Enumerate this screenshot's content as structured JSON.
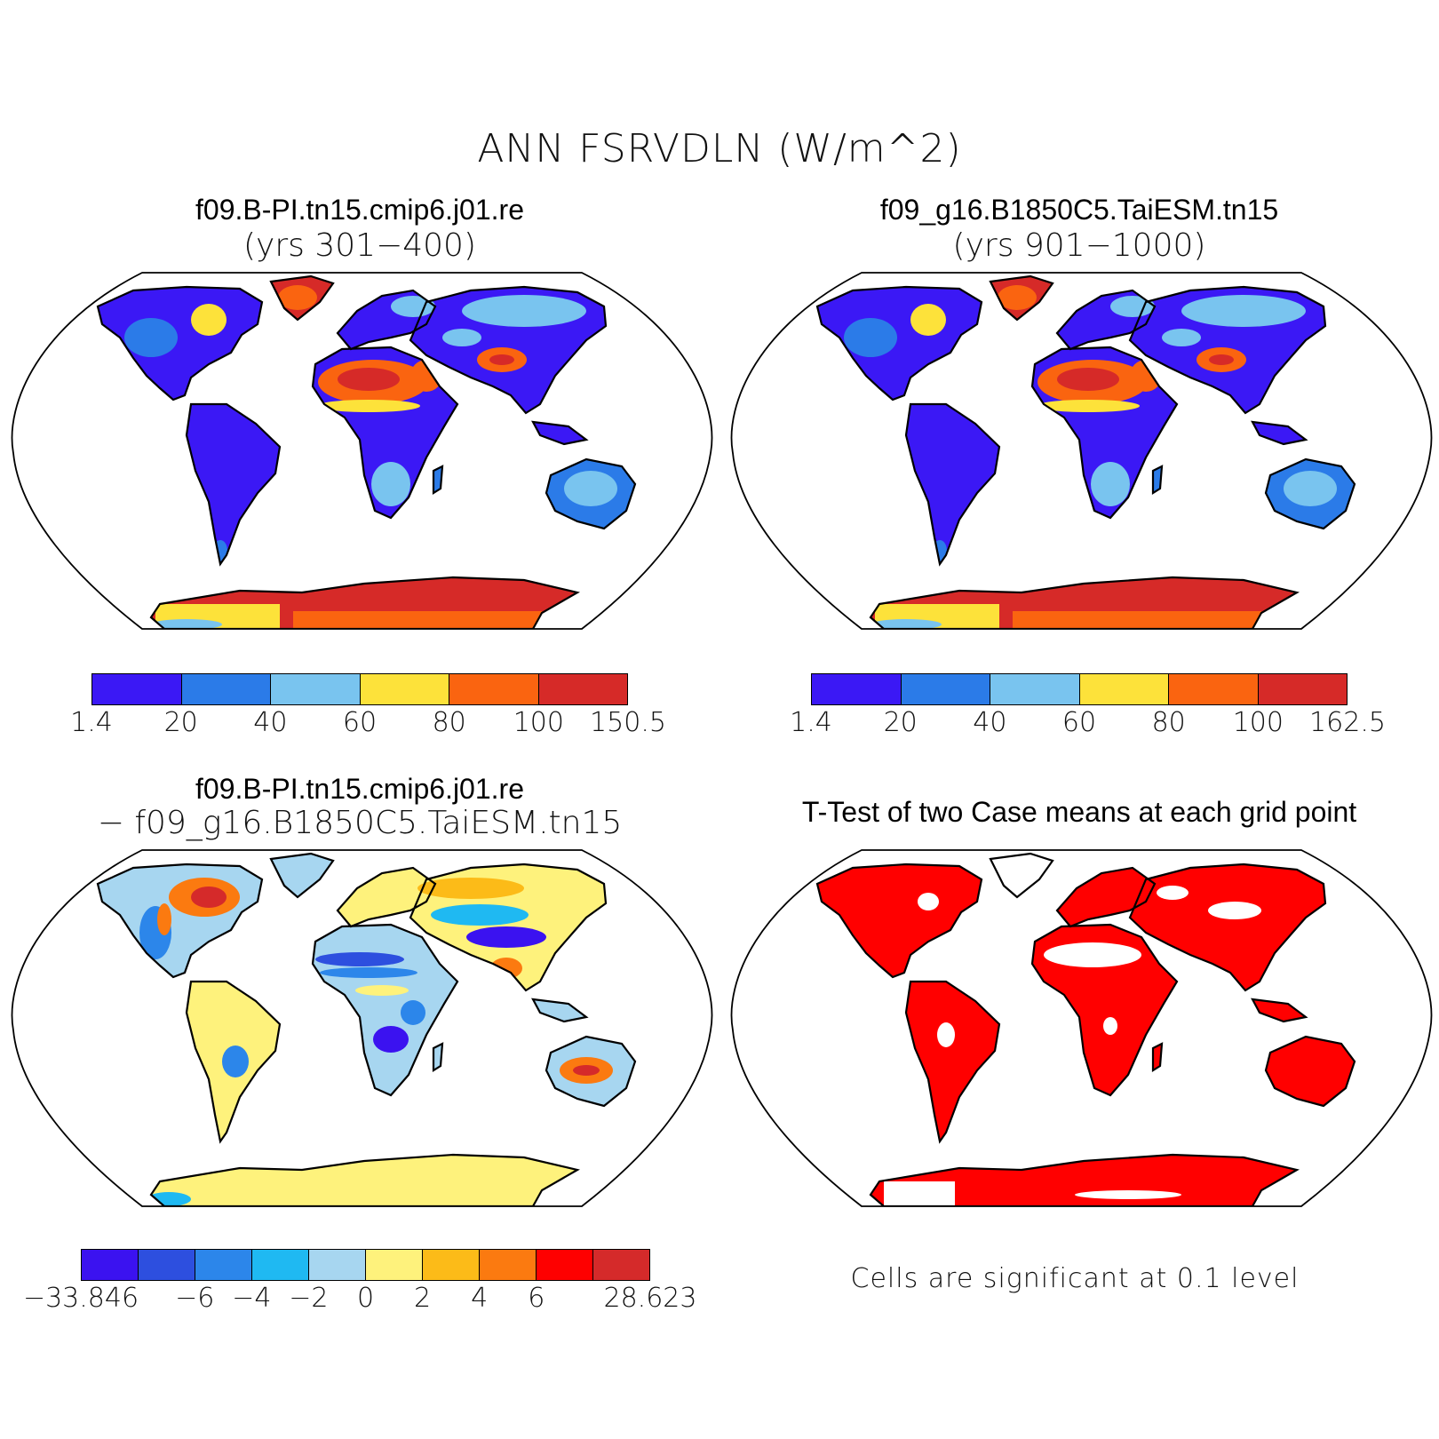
{
  "title": "ANN FSRVDLN (W/m^2)",
  "panels": {
    "case1": {
      "name": "f09.B-PI.tn15.cmip6.j01.re",
      "years": "(yrs 301−400)"
    },
    "case2": {
      "name": "f09_g16.B1850C5.TaiESM.tn15",
      "years": "(yrs 901−1000)"
    },
    "diff": {
      "line1": "f09.B-PI.tn15.cmip6.j01.re",
      "line2": "− f09_g16.B1850C5.TaiESM.tn15"
    },
    "ttest": {
      "title": "T-Test of two Case means at each grid point",
      "note": "Cells are significant at 0.1 level"
    }
  },
  "colorbars": {
    "case1": {
      "colors": [
        "#3b18f5",
        "#2b7be8",
        "#79c4ef",
        "#fde23a",
        "#fa6410",
        "#d62a28"
      ],
      "labels": [
        "1.4",
        "20",
        "40",
        "60",
        "80",
        "100",
        "150.5"
      ]
    },
    "case2": {
      "colors": [
        "#3b18f5",
        "#2b7be8",
        "#79c4ef",
        "#fde23a",
        "#fa6410",
        "#d62a28"
      ],
      "labels": [
        "1.4",
        "20",
        "40",
        "60",
        "80",
        "100",
        "162.5"
      ]
    },
    "diff": {
      "colors": [
        "#3b12f0",
        "#2d4fdf",
        "#2c86ea",
        "#1fb9f2",
        "#a7d6f0",
        "#fef27c",
        "#fcbb18",
        "#fb7a10",
        "#fe0000",
        "#d52a2a"
      ],
      "labels": [
        "−33.846",
        "",
        "−6",
        "−4",
        "−2",
        "0",
        "2",
        "4",
        "6",
        "",
        "28.623"
      ]
    }
  },
  "map": {
    "land_color_base": "#3b18f5",
    "ttest_color": "#ff0000"
  }
}
